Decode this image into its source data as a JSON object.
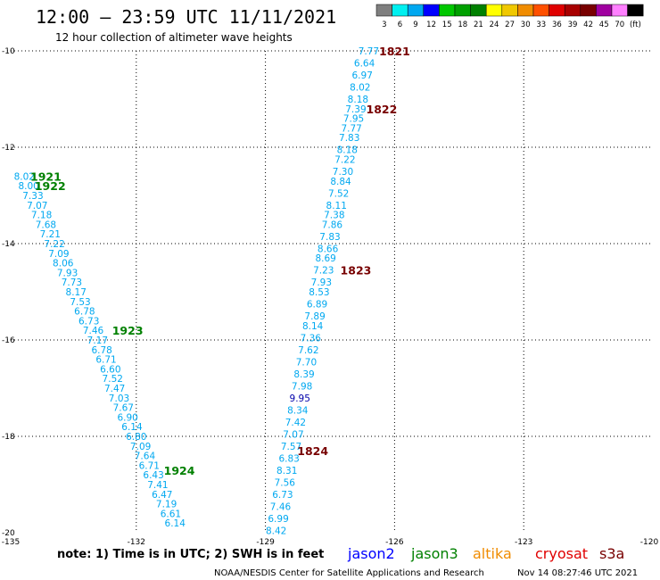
{
  "header": {
    "title": "12:00 – 23:59 UTC 11/11/2021",
    "subtitle": "12 hour collection of altimeter wave heights"
  },
  "colorbar": {
    "labels": [
      "3",
      "6",
      "9",
      "12",
      "15",
      "18",
      "21",
      "24",
      "27",
      "30",
      "33",
      "36",
      "39",
      "42",
      "45",
      "70",
      "(ft)"
    ],
    "colors": [
      "#7f7f7f",
      "#00f0f0",
      "#00a8f0",
      "#0000ff",
      "#00c800",
      "#00a000",
      "#008000",
      "#ffff00",
      "#f0c800",
      "#f08c00",
      "#ff5000",
      "#e00000",
      "#a80000",
      "#780000",
      "#a000a0",
      "#ff80ff",
      "#000000"
    ]
  },
  "footer": {
    "note": "note: 1) Time is in UTC; 2) SWH is in feet",
    "credit": "NOAA/NESDIS Center for Satellite Applications and Research",
    "timestamp": "Nov 14 08:27:46 UTC 2021"
  },
  "satellites": [
    {
      "name": "jason2",
      "color": "#0000ff"
    },
    {
      "name": "jason3",
      "color": "#008000"
    },
    {
      "name": "altika",
      "color": "#f08c00"
    },
    {
      "name": "cryosat",
      "color": "#e00000"
    },
    {
      "name": "s3a",
      "color": "#780000"
    }
  ],
  "chart_data": {
    "type": "scatter",
    "title": "12:00 – 23:59 UTC 11/11/2021",
    "subtitle": "12 hour collection of altimeter wave heights",
    "xlim": [
      -135,
      -120
    ],
    "ylim": [
      -20,
      -10
    ],
    "x_ticks": [
      -135,
      -132,
      -129,
      -126,
      -123,
      -120
    ],
    "y_ticks": [
      -10,
      -12,
      -14,
      -16,
      -18,
      -20
    ],
    "x_tick_labels": [
      "-135",
      "-132",
      "-129",
      "-126",
      "-123",
      "-120"
    ],
    "y_tick_labels": [
      "-10",
      "-12",
      "-14",
      "-16",
      "-18",
      "-20"
    ],
    "grid": true,
    "value_colors": {
      "cyan": "#00a8f0",
      "blue": "#0000aa",
      "green": "#008000",
      "darkred": "#780000"
    },
    "tracks": [
      {
        "satellite": "jason3",
        "color": "#008000",
        "values": [
          "8.02",
          "8.00",
          "7.33",
          "7.07",
          "7.18",
          "7.68",
          "7.21",
          "7.22",
          "7.09",
          "8.06",
          "7.93",
          "7.73",
          "8.17",
          "7.53",
          "6.78",
          "6.73",
          "7.46",
          "7.17",
          "6.78",
          "6.71",
          "6.60",
          "7.52",
          "7.47",
          "7.03",
          "7.67",
          "6.90",
          "6.14",
          "6.80",
          "7.09",
          "7.64",
          "6.71",
          "6.43",
          "7.41",
          "6.47",
          "7.19",
          "6.61",
          "6.14"
        ],
        "lon": [
          -134.6,
          -134.5,
          -134.4,
          -134.3,
          -134.2,
          -134.1,
          -134.0,
          -133.9,
          -133.8,
          -133.7,
          -133.6,
          -133.5,
          -133.4,
          -133.3,
          -133.2,
          -133.1,
          -133.0,
          -132.9,
          -132.8,
          -132.7,
          -132.6,
          -132.55,
          -132.5,
          -132.4,
          -132.3,
          -132.2,
          -132.1,
          -132.0,
          -131.9,
          -131.8,
          -131.7,
          -131.6,
          -131.5,
          -131.4,
          -131.3,
          -131.2,
          -131.1
        ],
        "lat": [
          -12.6,
          -12.8,
          -13.0,
          -13.2,
          -13.4,
          -13.6,
          -13.8,
          -14.0,
          -14.2,
          -14.4,
          -14.6,
          -14.8,
          -15.0,
          -15.2,
          -15.4,
          -15.6,
          -15.8,
          -16.0,
          -16.2,
          -16.4,
          -16.6,
          -16.8,
          -17.0,
          -17.2,
          -17.4,
          -17.6,
          -17.8,
          -18.0,
          -18.2,
          -18.4,
          -18.6,
          -18.8,
          -19.0,
          -19.2,
          -19.4,
          -19.6,
          -19.8
        ],
        "time_labels": [
          {
            "label": "1921",
            "lon": -134.1,
            "lat": -12.6
          },
          {
            "label": "1922",
            "lon": -134.0,
            "lat": -12.8
          },
          {
            "label": "1923",
            "lon": -132.2,
            "lat": -15.8
          },
          {
            "label": "1924",
            "lon": -131.0,
            "lat": -18.7
          }
        ]
      },
      {
        "satellite": "s3a",
        "color": "#780000",
        "values": [
          "7.77",
          "6.64",
          "6.97",
          "8.02",
          "8.18",
          "7.39",
          "7.95",
          "7.77",
          "7.83",
          "8.18",
          "7.22",
          "7.30",
          "8.84",
          "7.52",
          "8.11",
          "7.38",
          "7.86",
          "7.83",
          "8.66",
          "8.69",
          "7.23",
          "7.93",
          "8.53",
          "6.89",
          "7.89",
          "8.14",
          "7.36",
          "7.62",
          "7.70",
          "8.39",
          "7.98",
          "9.95",
          "8.34",
          "7.42",
          "7.07",
          "7.57",
          "6.83",
          "8.31",
          "7.56",
          "6.73",
          "7.46",
          "6.99",
          "8.42"
        ],
        "lon": [
          -126.6,
          -126.7,
          -126.75,
          -126.8,
          -126.85,
          -126.9,
          -126.95,
          -127.0,
          -127.05,
          -127.1,
          -127.15,
          -127.2,
          -127.25,
          -127.3,
          -127.35,
          -127.4,
          -127.45,
          -127.5,
          -127.55,
          -127.6,
          -127.65,
          -127.7,
          -127.75,
          -127.8,
          -127.85,
          -127.9,
          -127.95,
          -128.0,
          -128.05,
          -128.1,
          -128.15,
          -128.2,
          -128.25,
          -128.3,
          -128.35,
          -128.4,
          -128.45,
          -128.5,
          -128.55,
          -128.6,
          -128.65,
          -128.7,
          -128.75
        ],
        "lat": [
          -10.0,
          -10.25,
          -10.5,
          -10.75,
          -11.0,
          -11.2,
          -11.4,
          -11.6,
          -11.8,
          -12.05,
          -12.25,
          -12.5,
          -12.7,
          -12.95,
          -13.2,
          -13.4,
          -13.6,
          -13.85,
          -14.1,
          -14.3,
          -14.55,
          -14.8,
          -15.0,
          -15.25,
          -15.5,
          -15.7,
          -15.95,
          -16.2,
          -16.45,
          -16.7,
          -16.95,
          -17.2,
          -17.45,
          -17.7,
          -17.95,
          -18.2,
          -18.45,
          -18.7,
          -18.95,
          -19.2,
          -19.45,
          -19.7,
          -19.95
        ],
        "time_labels": [
          {
            "label": "1821",
            "lon": -126.0,
            "lat": -10.0
          },
          {
            "label": "1822",
            "lon": -126.3,
            "lat": -11.2
          },
          {
            "label": "1823",
            "lon": -126.9,
            "lat": -14.55
          },
          {
            "label": "1824",
            "lon": -127.9,
            "lat": -18.3
          }
        ]
      }
    ]
  }
}
